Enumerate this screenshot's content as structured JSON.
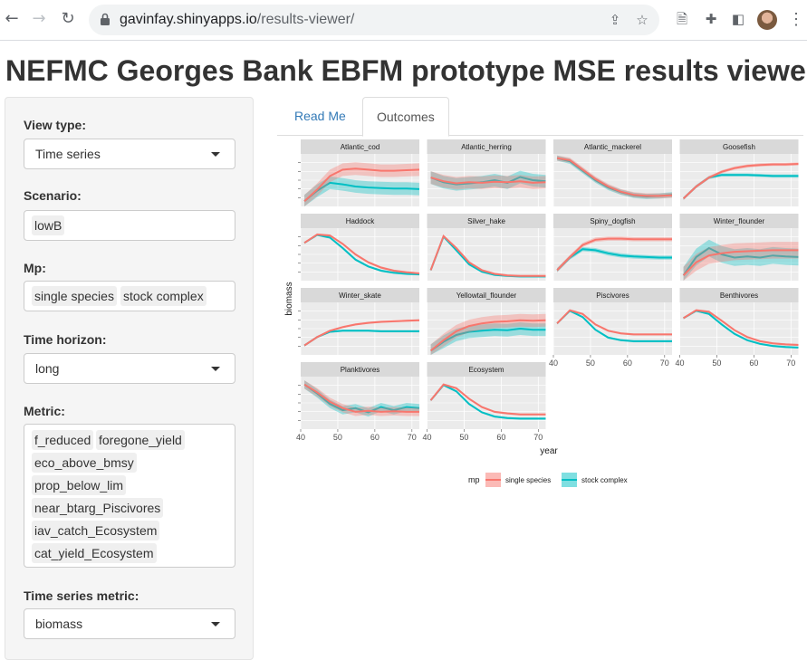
{
  "browser": {
    "url_host": "gavinfay.shinyapps.io",
    "url_path": "/results-viewer/",
    "icons": [
      "back-arrow-icon",
      "forward-arrow-icon",
      "reload-icon",
      "lock-icon",
      "share-icon",
      "star-icon",
      "document-icon",
      "puzzle-icon",
      "sidebar-icon",
      "avatar",
      "more-vert-icon"
    ]
  },
  "page": {
    "title": "NEFMC Georges Bank EBFM prototype MSE results viewer"
  },
  "sidebar": {
    "view_type_label": "View type:",
    "view_type_value": "Time series",
    "scenario_label": "Scenario:",
    "scenario_tags": [
      "lowB"
    ],
    "mp_label": "Mp:",
    "mp_tags": [
      "single species",
      "stock complex"
    ],
    "time_horizon_label": "Time horizon:",
    "time_horizon_value": "long",
    "metric_label": "Metric:",
    "metric_tags": [
      "f_reduced",
      "foregone_yield",
      "eco_above_bmsy",
      "prop_below_lim",
      "near_btarg_Piscivores",
      "iav_catch_Ecosystem",
      "cat_yield_Ecosystem"
    ],
    "ts_metric_label": "Time series metric:",
    "ts_metric_value": "biomass"
  },
  "tabs": [
    "Read Me",
    "Outcomes"
  ],
  "colors": {
    "single_species": "#f8766d",
    "stock_complex": "#00bfc4",
    "strip": "#d9d9d9",
    "panel": "#ebebeb"
  },
  "chart_data": {
    "type": "line",
    "xlabel": "year",
    "ylabel": "biomass",
    "xticks": [
      40,
      50,
      60,
      70
    ],
    "xlim": [
      40,
      72
    ],
    "legend_title": "mp",
    "legend_position": "bottom",
    "series_names": [
      "single species",
      "stock complex"
    ],
    "panels": [
      {
        "name": "Atlantic_cod",
        "ss": [
          0.1,
          0.32,
          0.58,
          0.7,
          0.72,
          0.7,
          0.68,
          0.68,
          0.69,
          0.7
        ],
        "sc": [
          0.1,
          0.3,
          0.45,
          0.42,
          0.38,
          0.36,
          0.35,
          0.34,
          0.34,
          0.33
        ],
        "band": 0.12
      },
      {
        "name": "Atlantic_herring",
        "ss": [
          0.55,
          0.48,
          0.44,
          0.46,
          0.45,
          0.47,
          0.46,
          0.48,
          0.45,
          0.46
        ],
        "sc": [
          0.55,
          0.46,
          0.42,
          0.44,
          0.46,
          0.5,
          0.45,
          0.56,
          0.5,
          0.48
        ],
        "band": 0.12
      },
      {
        "name": "Atlantic_mackerel",
        "ss": [
          0.92,
          0.88,
          0.7,
          0.52,
          0.38,
          0.28,
          0.22,
          0.2,
          0.2,
          0.21
        ],
        "sc": [
          0.92,
          0.86,
          0.68,
          0.5,
          0.36,
          0.27,
          0.21,
          0.19,
          0.2,
          0.22
        ],
        "band": 0.05
      },
      {
        "name": "Goosefish",
        "ss": [
          0.15,
          0.38,
          0.55,
          0.66,
          0.73,
          0.77,
          0.79,
          0.8,
          0.8,
          0.81
        ],
        "sc": [
          0.15,
          0.38,
          0.55,
          0.6,
          0.6,
          0.6,
          0.59,
          0.58,
          0.58,
          0.58
        ],
        "band": 0.03
      },
      {
        "name": "Haddock",
        "ss": [
          0.72,
          0.88,
          0.86,
          0.7,
          0.5,
          0.35,
          0.25,
          0.19,
          0.16,
          0.14
        ],
        "sc": [
          0.72,
          0.87,
          0.82,
          0.62,
          0.4,
          0.27,
          0.19,
          0.15,
          0.13,
          0.12
        ],
        "band": 0.02
      },
      {
        "name": "Silver_hake",
        "ss": [
          0.2,
          0.85,
          0.62,
          0.35,
          0.2,
          0.13,
          0.1,
          0.09,
          0.09,
          0.09
        ],
        "sc": [
          0.2,
          0.84,
          0.58,
          0.31,
          0.17,
          0.11,
          0.09,
          0.08,
          0.08,
          0.08
        ],
        "band": 0.02
      },
      {
        "name": "Spiny_dogfish",
        "ss": [
          0.2,
          0.45,
          0.68,
          0.78,
          0.8,
          0.8,
          0.79,
          0.79,
          0.79,
          0.79
        ],
        "sc": [
          0.2,
          0.44,
          0.6,
          0.58,
          0.52,
          0.48,
          0.46,
          0.45,
          0.44,
          0.44
        ],
        "band": 0.04
      },
      {
        "name": "Winter_flounder",
        "ss": [
          0.1,
          0.35,
          0.48,
          0.52,
          0.55,
          0.56,
          0.57,
          0.58,
          0.58,
          0.58
        ],
        "sc": [
          0.1,
          0.45,
          0.62,
          0.5,
          0.44,
          0.46,
          0.44,
          0.48,
          0.46,
          0.45
        ],
        "band": 0.16
      },
      {
        "name": "Winter_skate",
        "ss": [
          0.18,
          0.34,
          0.46,
          0.53,
          0.58,
          0.61,
          0.63,
          0.64,
          0.65,
          0.66
        ],
        "sc": [
          0.18,
          0.34,
          0.44,
          0.46,
          0.46,
          0.46,
          0.45,
          0.45,
          0.45,
          0.45
        ],
        "band": 0.02
      },
      {
        "name": "Yellowtail_flounder",
        "ss": [
          0.08,
          0.28,
          0.45,
          0.55,
          0.6,
          0.63,
          0.64,
          0.66,
          0.65,
          0.66
        ],
        "sc": [
          0.08,
          0.25,
          0.38,
          0.44,
          0.46,
          0.48,
          0.47,
          0.5,
          0.48,
          0.48
        ],
        "band": 0.12
      },
      {
        "name": "Piscivores",
        "ss": [
          0.6,
          0.85,
          0.78,
          0.58,
          0.46,
          0.41,
          0.39,
          0.39,
          0.39,
          0.39
        ],
        "sc": [
          0.6,
          0.84,
          0.72,
          0.48,
          0.33,
          0.28,
          0.26,
          0.26,
          0.26,
          0.26
        ],
        "band": 0.02
      },
      {
        "name": "Benthivores",
        "ss": [
          0.7,
          0.85,
          0.82,
          0.65,
          0.47,
          0.34,
          0.26,
          0.22,
          0.2,
          0.19
        ],
        "sc": [
          0.7,
          0.84,
          0.78,
          0.58,
          0.4,
          0.28,
          0.21,
          0.17,
          0.15,
          0.14
        ],
        "band": 0.02
      },
      {
        "name": "Planktivores",
        "ss": [
          0.85,
          0.7,
          0.52,
          0.4,
          0.33,
          0.35,
          0.33,
          0.34,
          0.33,
          0.33
        ],
        "sc": [
          0.85,
          0.68,
          0.48,
          0.36,
          0.4,
          0.32,
          0.42,
          0.36,
          0.42,
          0.4
        ],
        "band": 0.08
      },
      {
        "name": "Ecosystem",
        "ss": [
          0.55,
          0.85,
          0.78,
          0.58,
          0.42,
          0.33,
          0.3,
          0.28,
          0.28,
          0.28
        ],
        "sc": [
          0.55,
          0.84,
          0.72,
          0.48,
          0.32,
          0.24,
          0.21,
          0.2,
          0.2,
          0.2
        ],
        "band": 0.02
      }
    ]
  }
}
